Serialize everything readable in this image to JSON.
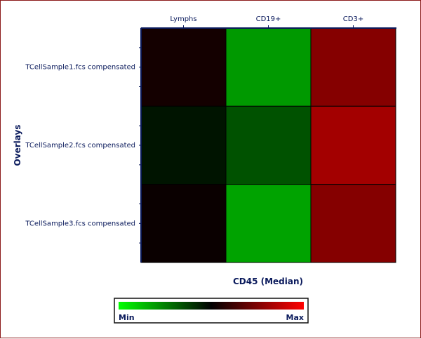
{
  "chart_data": {
    "type": "heatmap",
    "columns": [
      "Lymphs",
      "CD19+",
      "CD3+"
    ],
    "rows": [
      "TCellSample1.fcs compensated",
      "TCellSample2.fcs compensated",
      "TCellSample3.fcs compensated"
    ],
    "values": [
      [
        0.54,
        0.2,
        0.76
      ],
      [
        0.46,
        0.34,
        0.82
      ],
      [
        0.52,
        0.18,
        0.76
      ]
    ],
    "value_range": [
      0,
      1
    ],
    "xlabel": "CD45 (Median)",
    "ylabel": "Overlays",
    "colorscale": {
      "min_color": "#00ff00",
      "mid_color": "#000000",
      "max_color": "#ff0000"
    },
    "legend": {
      "min_label": "Min",
      "max_label": "Max",
      "placement": "bottom-center"
    }
  }
}
